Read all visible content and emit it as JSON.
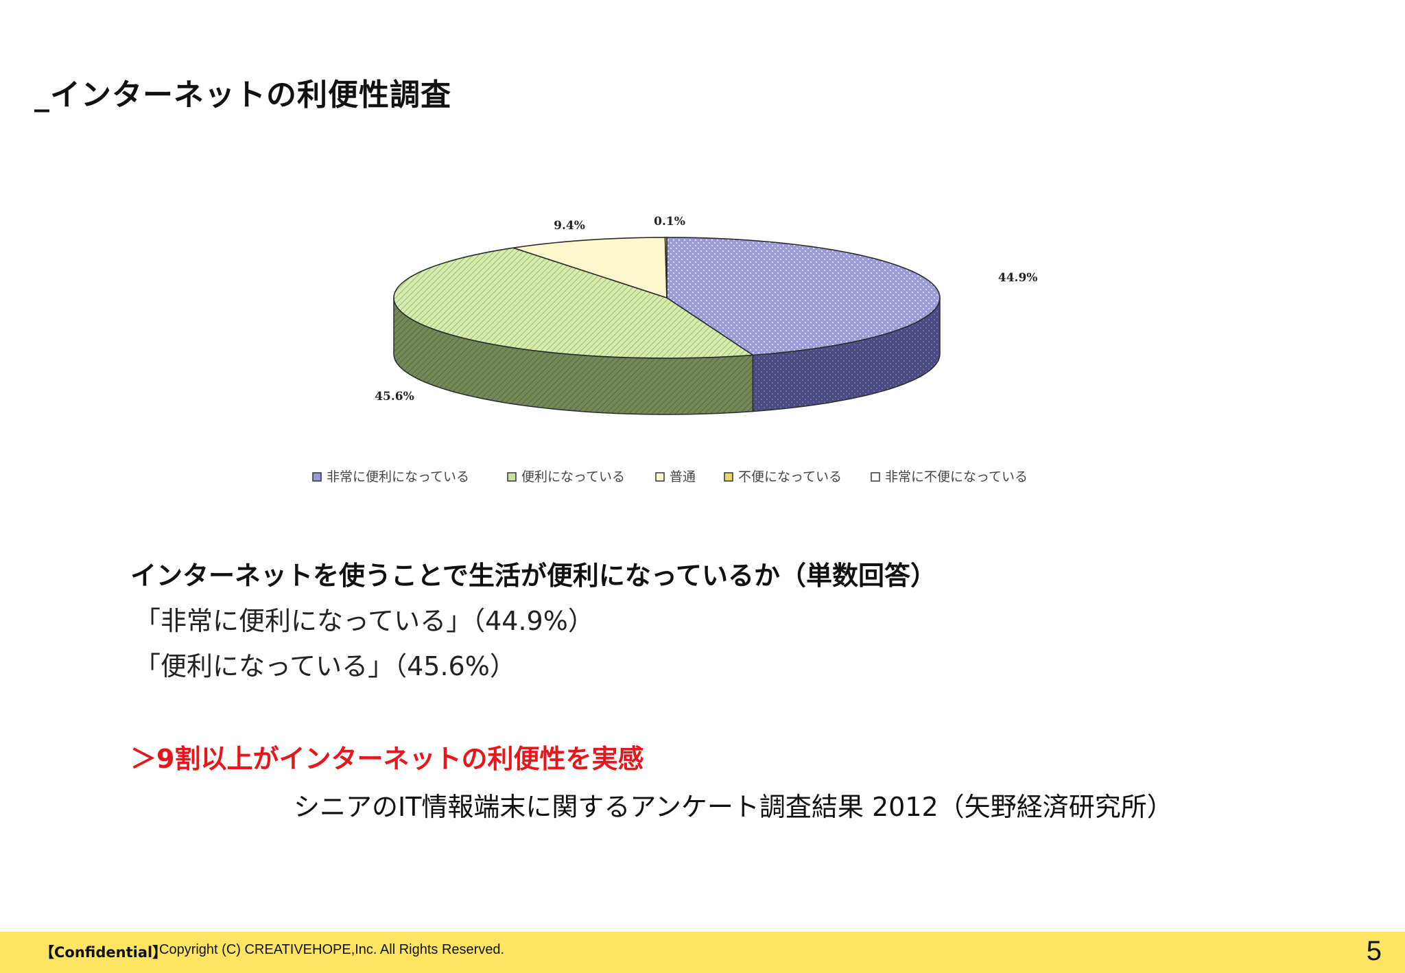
{
  "slide": {
    "title": "_インターネットの利便性調査",
    "question": "インターネットを使うことで生活が便利になっているか（単数回答）",
    "answer_1": "「非常に便利になっている」（44.9%）",
    "answer_2": "「便利になっている」（45.6%）",
    "conclusion": "＞9割以上がインターネットの利便性を実感",
    "source": "シニアのIT情報端末に関するアンケート調査結果 2012（矢野経済研究所）"
  },
  "footer": {
    "confidential": "【Confidential】",
    "copyright": "Copyright (C) CREATIVEHOPE,Inc. All Rights Reserved.",
    "page_number": "5"
  },
  "chart_data": {
    "type": "pie",
    "style": "3d",
    "categories": [
      "非常に便利になっている",
      "便利になっている",
      "普通",
      "不便になっている",
      "非常に不便になっている"
    ],
    "values": [
      44.9,
      45.6,
      9.4,
      0.1,
      0.0
    ],
    "labels": [
      "44.9%",
      "45.6%",
      "9.4%",
      "0.1%",
      ""
    ],
    "colors": [
      "#9a9ad8",
      "#c8e29a",
      "#fdf8cc",
      "#e8d86a",
      "#ffffff"
    ],
    "legend_position": "bottom"
  }
}
